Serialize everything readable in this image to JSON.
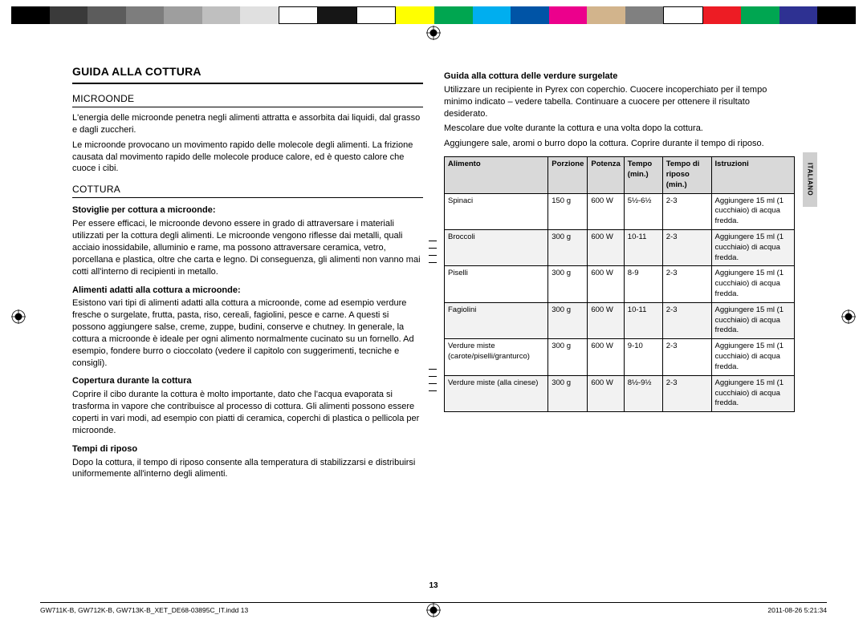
{
  "colorbar": [
    "#000000",
    "#3a3a3a",
    "#5c5c5c",
    "#7d7d7d",
    "#9e9e9e",
    "#bfbfbf",
    "#e0e0e0",
    "#ffffff",
    "#161616",
    "#ffffff",
    "#ffff00",
    "#00a650",
    "#00aeef",
    "#0054a6",
    "#ec008c",
    "#d2b48c",
    "#808080",
    "#ffffff",
    "#ed1c24",
    "#00a651",
    "#2e3192",
    "#000000"
  ],
  "title": "GUIDA ALLA COTTURA",
  "left": {
    "h2a": "MICROONDE",
    "p1": "L'energia delle microonde penetra negli alimenti attratta e assorbita dai liquidi, dal grasso e dagli zuccheri.",
    "p2": "Le microonde provocano un movimento rapido delle molecole degli alimenti. La frizione causata dal movimento rapido delle molecole produce calore, ed è questo calore che cuoce i cibi.",
    "h2b": "COTTURA",
    "s1h": "Stoviglie per cottura a microonde:",
    "s1p": "Per essere efficaci, le microonde devono essere in grado di attraversare i materiali utilizzati per la cottura degli alimenti. Le microonde vengono riflesse dai metalli, quali acciaio inossidabile, alluminio e rame, ma possono attraversare ceramica, vetro, porcellana e plastica, oltre che carta e legno. Di conseguenza, gli alimenti non vanno mai cotti all'interno di recipienti in metallo.",
    "s2h": "Alimenti adatti alla cottura a microonde:",
    "s2p": "Esistono vari tipi di alimenti adatti alla cottura a microonde, come ad esempio verdure fresche o surgelate, frutta, pasta, riso, cereali, fagiolini, pesce e carne. A questi si possono aggiungere salse, creme, zuppe, budini, conserve e chutney. In generale, la cottura a microonde è ideale per ogni alimento normalmente cucinato su un fornello. Ad esempio, fondere burro o cioccolato (vedere il capitolo con suggerimenti, tecniche e consigli).",
    "s3h": "Copertura durante la cottura",
    "s3p": "Coprire il cibo durante la cottura è molto importante, dato che l'acqua evaporata si trasforma in vapore che contribuisce al processo di cottura. Gli alimenti possono essere coperti in vari modi, ad esempio con piatti di ceramica, coperchi di plastica o pellicola per microonde.",
    "s4h": "Tempi di riposo",
    "s4p": "Dopo la cottura, il tempo di riposo consente alla temperatura di stabilizzarsi e distribuirsi uniformemente all'interno degli alimenti."
  },
  "right": {
    "h3": "Guida alla cottura delle verdure surgelate",
    "p1": "Utilizzare un recipiente in Pyrex con coperchio. Cuocere incoperchiato per il tempo minimo indicato – vedere tabella. Continuare a cuocere per ottenere il risultato desiderato.",
    "p2": "Mescolare due volte durante la cottura e una volta dopo la cottura.",
    "p3": "Aggiungere sale, aromi o burro dopo la cottura. Coprire durante il tempo di riposo.",
    "headers": [
      "Alimento",
      "Porzione",
      "Potenza",
      "Tempo (min.)",
      "Tempo di riposo (min.)",
      "Istruzioni"
    ],
    "rows": [
      [
        "Spinaci",
        "150 g",
        "600 W",
        "5½-6½",
        "2-3",
        "Aggiungere 15 ml (1 cucchiaio) di acqua fredda."
      ],
      [
        "Broccoli",
        "300 g",
        "600 W",
        "10-11",
        "2-3",
        "Aggiungere 15 ml (1 cucchiaio) di acqua fredda."
      ],
      [
        "Piselli",
        "300 g",
        "600 W",
        "8-9",
        "2-3",
        "Aggiungere 15 ml (1 cucchiaio) di acqua fredda."
      ],
      [
        "Fagiolini",
        "300 g",
        "600 W",
        "10-11",
        "2-3",
        "Aggiungere 15 ml (1 cucchiaio) di acqua fredda."
      ],
      [
        "Verdure miste (carote/piselli/granturco)",
        "300 g",
        "600 W",
        "9-10",
        "2-3",
        "Aggiungere 15 ml (1 cucchiaio) di acqua fredda."
      ],
      [
        "Verdure miste (alla cinese)",
        "300 g",
        "600 W",
        "8½-9½",
        "2-3",
        "Aggiungere 15 ml (1 cucchiaio) di acqua fredda."
      ]
    ]
  },
  "langtab": "ITALIANO",
  "pagenum": "13",
  "footer_left": "GW711K-B, GW712K-B, GW713K-B_XET_DE68-03895C_IT.indd   13",
  "footer_right": "2011-08-26   5:21:34"
}
